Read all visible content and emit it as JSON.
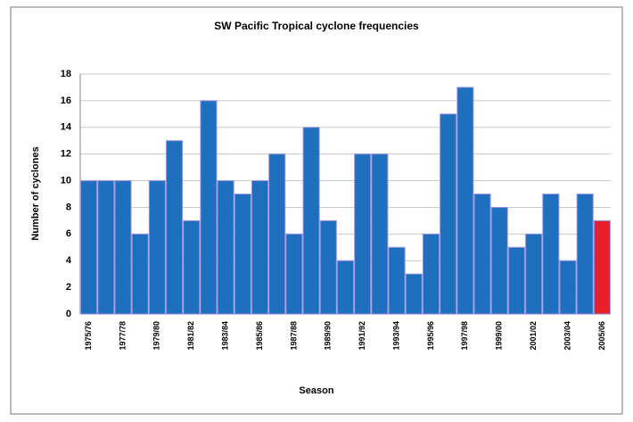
{
  "chart_data": {
    "type": "bar",
    "title": "SW Pacific Tropical cyclone frequencies",
    "x_label": "Season",
    "y_label": "Number of cyclones",
    "categories": [
      "1975/76",
      null,
      "1977/78",
      null,
      "1979/80",
      null,
      "1981/82",
      null,
      "1983/84",
      null,
      "1985/86",
      null,
      "1987/88",
      null,
      "1989/90",
      null,
      "1991/92",
      null,
      "1993/94",
      null,
      "1995/96",
      null,
      "1997/98",
      null,
      "1999/00",
      null,
      "2001/02",
      null,
      "2003/04",
      null,
      "2005/06"
    ],
    "values": [
      10,
      10,
      10,
      6,
      10,
      13,
      7,
      16,
      10,
      9,
      10,
      12,
      6,
      14,
      7,
      4,
      12,
      12,
      5,
      3,
      6,
      15,
      17,
      9,
      8,
      5,
      6,
      9,
      4,
      9,
      7
    ],
    "colors": [
      "#1f6fbf",
      "#1f6fbf",
      "#1f6fbf",
      "#1f6fbf",
      "#1f6fbf",
      "#1f6fbf",
      "#1f6fbf",
      "#1f6fbf",
      "#1f6fbf",
      "#1f6fbf",
      "#1f6fbf",
      "#1f6fbf",
      "#1f6fbf",
      "#1f6fbf",
      "#1f6fbf",
      "#1f6fbf",
      "#1f6fbf",
      "#1f6fbf",
      "#1f6fbf",
      "#1f6fbf",
      "#1f6fbf",
      "#1f6fbf",
      "#1f6fbf",
      "#1f6fbf",
      "#1f6fbf",
      "#1f6fbf",
      "#1f6fbf",
      "#1f6fbf",
      "#1f6fbf",
      "#1f6fbf",
      "#e8202a"
    ],
    "ylim": [
      0,
      18
    ],
    "yticks": [
      0,
      2,
      4,
      6,
      8,
      10,
      12,
      14,
      16,
      18
    ],
    "grid": true
  }
}
